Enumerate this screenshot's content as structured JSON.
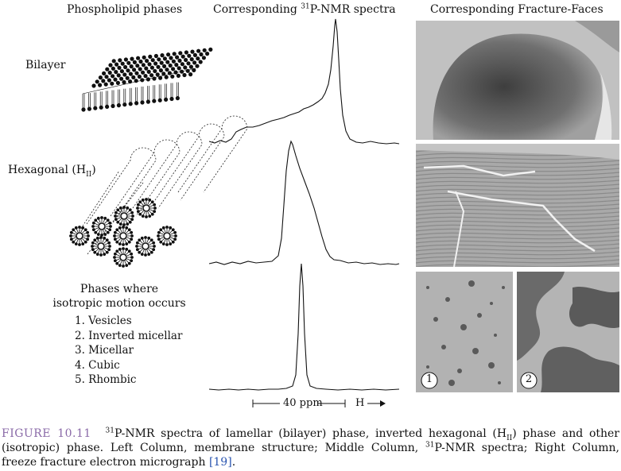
{
  "headers": {
    "phases": "Phospholipid phases",
    "nmr_pre": "Corresponding ",
    "nmr_sup": "31",
    "nmr_post": "P-NMR spectra",
    "faces": "Corresponding Fracture-Faces"
  },
  "rows": {
    "bilayer": "Bilayer",
    "hexagonal_main": "Hexagonal (H",
    "hexagonal_sub": "II",
    "hexagonal_close": ")"
  },
  "isotropic": {
    "line1": "Phases where",
    "line2": "isotropic motion occurs",
    "items": [
      "1. Vesicles",
      "2. Inverted micellar",
      "3. Micellar",
      "4. Cubic",
      "5. Rhombic"
    ]
  },
  "scale": {
    "ppm": "40 ppm",
    "field": "H"
  },
  "photo_labels": [
    "1",
    "2"
  ],
  "caption": {
    "label": "FIGURE 10.11",
    "sup1": "31",
    "t1": "P-NMR spectra of lamellar (bilayer) phase, inverted hexagonal (H",
    "sub1": "II",
    "t2": ") phase and other (isotropic) phase. Left Column, membrane structure; Middle Column, ",
    "sup2": "31",
    "t3": "P-NMR spectra; Right Column, freeze fracture electron micrograph ",
    "ref": "[19]",
    "t4": "."
  }
}
